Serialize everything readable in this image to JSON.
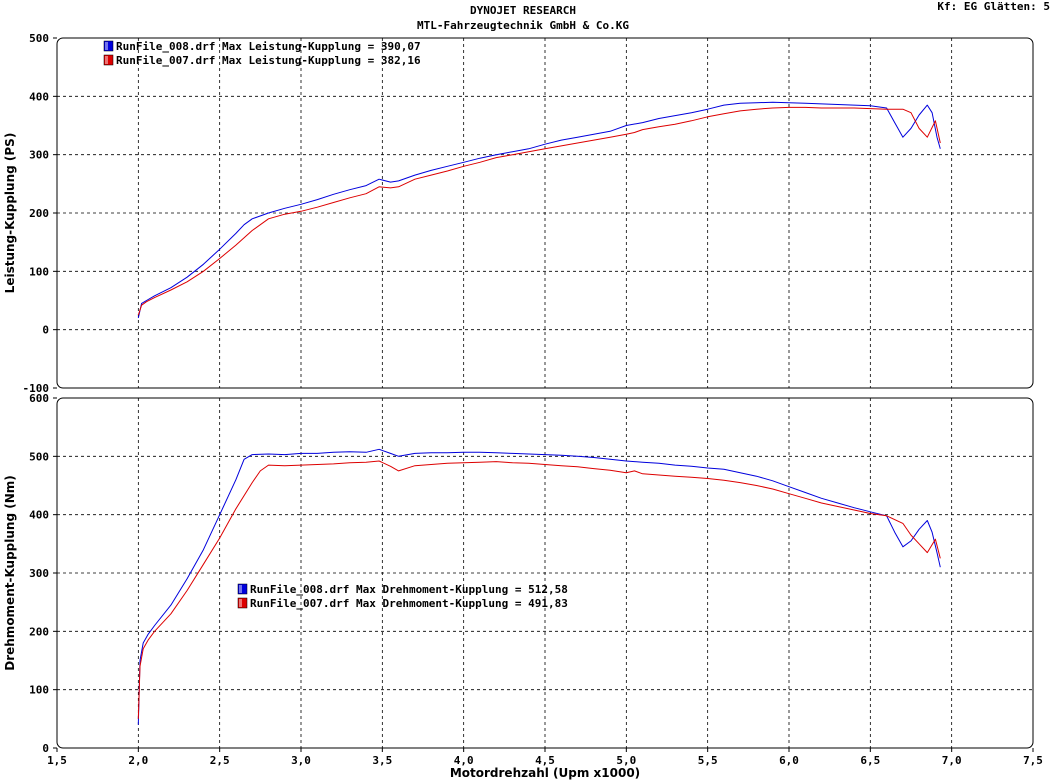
{
  "header": {
    "line1": "DYNOJET RESEARCH",
    "line2": "MTL-Fahrzeugtechnik GmbH & Co.KG",
    "settings": "Kf: EG  Glätten: 5"
  },
  "chart_data": [
    {
      "type": "line",
      "ylabel": "Leistung-Kupplung (PS)",
      "xlim": [
        1.5,
        7.5
      ],
      "ylim": [
        -100,
        500
      ],
      "yticks": [
        "500",
        "400",
        "300",
        "200",
        "100",
        "0",
        "-100"
      ],
      "grid": true,
      "legend_position": "top-left",
      "series": [
        {
          "name": "RunFile_008.drf",
          "legend": "RunFile_008.drf Max Leistung-Kupplung = 390,07",
          "color": "#0000dd",
          "x": [
            2.0,
            2.02,
            2.05,
            2.1,
            2.2,
            2.3,
            2.4,
            2.5,
            2.6,
            2.65,
            2.7,
            2.8,
            2.9,
            3.0,
            3.1,
            3.2,
            3.3,
            3.4,
            3.48,
            3.55,
            3.6,
            3.7,
            3.8,
            3.9,
            4.0,
            4.1,
            4.2,
            4.3,
            4.4,
            4.5,
            4.6,
            4.7,
            4.8,
            4.9,
            5.0,
            5.1,
            5.2,
            5.3,
            5.4,
            5.5,
            5.6,
            5.7,
            5.8,
            5.9,
            6.0,
            6.1,
            6.2,
            6.3,
            6.4,
            6.5,
            6.6,
            6.65,
            6.7,
            6.75,
            6.8,
            6.85,
            6.88,
            6.91,
            6.93
          ],
          "y": [
            20,
            45,
            50,
            58,
            72,
            90,
            112,
            138,
            165,
            180,
            190,
            200,
            208,
            215,
            223,
            232,
            240,
            247,
            258,
            253,
            255,
            265,
            273,
            280,
            287,
            294,
            300,
            305,
            310,
            318,
            325,
            330,
            335,
            340,
            350,
            355,
            362,
            367,
            372,
            378,
            385,
            388,
            389,
            390,
            389,
            388,
            387,
            386,
            385,
            384,
            380,
            355,
            330,
            345,
            368,
            385,
            372,
            330,
            310
          ]
        },
        {
          "name": "RunFile_007.drf",
          "legend": "RunFile_007.drf Max Leistung-Kupplung = 382,16",
          "color": "#dd0000",
          "x": [
            2.0,
            2.02,
            2.05,
            2.1,
            2.2,
            2.3,
            2.4,
            2.5,
            2.6,
            2.7,
            2.8,
            2.9,
            3.0,
            3.1,
            3.2,
            3.3,
            3.4,
            3.48,
            3.55,
            3.6,
            3.7,
            3.8,
            3.9,
            4.0,
            4.1,
            4.2,
            4.3,
            4.4,
            4.5,
            4.6,
            4.7,
            4.8,
            4.9,
            5.0,
            5.05,
            5.1,
            5.2,
            5.3,
            5.4,
            5.5,
            5.6,
            5.7,
            5.8,
            5.9,
            6.0,
            6.1,
            6.2,
            6.3,
            6.4,
            6.5,
            6.6,
            6.7,
            6.75,
            6.8,
            6.85,
            6.9,
            6.93
          ],
          "y": [
            25,
            42,
            48,
            55,
            68,
            82,
            100,
            122,
            145,
            170,
            190,
            198,
            203,
            210,
            218,
            226,
            233,
            245,
            243,
            245,
            258,
            265,
            272,
            280,
            287,
            295,
            300,
            305,
            310,
            315,
            320,
            325,
            330,
            335,
            338,
            343,
            348,
            352,
            358,
            365,
            370,
            375,
            378,
            380,
            381,
            381,
            380,
            380,
            380,
            379,
            378,
            378,
            372,
            345,
            330,
            358,
            320
          ]
        }
      ]
    },
    {
      "type": "line",
      "ylabel": "Drehmoment-Kupplung (Nm)",
      "xlabel": "Motordrehzahl (Upm x1000)",
      "xlim": [
        1.5,
        7.5
      ],
      "ylim": [
        0,
        600
      ],
      "xticks": [
        "1,5",
        "2,0",
        "2,5",
        "3,0",
        "3,5",
        "4,0",
        "4,5",
        "5,0",
        "5,5",
        "6,0",
        "6,5",
        "7,0",
        "7,5"
      ],
      "yticks": [
        "600",
        "500",
        "400",
        "300",
        "200",
        "100",
        "0"
      ],
      "grid": true,
      "legend_position": "center-left",
      "series": [
        {
          "name": "RunFile_008.drf",
          "legend": "RunFile_008.drf Max Drehmoment-Kupplung = 512,58",
          "color": "#0000dd",
          "x": [
            2.0,
            2.01,
            2.03,
            2.06,
            2.1,
            2.2,
            2.3,
            2.4,
            2.5,
            2.6,
            2.65,
            2.7,
            2.8,
            2.9,
            3.0,
            3.1,
            3.2,
            3.3,
            3.4,
            3.48,
            3.55,
            3.6,
            3.7,
            3.8,
            3.9,
            4.0,
            4.1,
            4.2,
            4.3,
            4.4,
            4.5,
            4.6,
            4.7,
            4.8,
            4.9,
            5.0,
            5.1,
            5.2,
            5.3,
            5.4,
            5.5,
            5.6,
            5.7,
            5.8,
            5.9,
            6.0,
            6.1,
            6.2,
            6.3,
            6.4,
            6.5,
            6.6,
            6.65,
            6.7,
            6.75,
            6.8,
            6.85,
            6.88,
            6.91,
            6.93
          ],
          "y": [
            40,
            150,
            180,
            195,
            210,
            245,
            290,
            340,
            400,
            460,
            495,
            503,
            504,
            503,
            505,
            505,
            507,
            508,
            507,
            512,
            505,
            500,
            505,
            506,
            506,
            507,
            507,
            506,
            505,
            504,
            503,
            502,
            500,
            498,
            495,
            492,
            490,
            488,
            485,
            483,
            480,
            478,
            472,
            466,
            458,
            448,
            438,
            428,
            420,
            412,
            405,
            398,
            370,
            345,
            355,
            375,
            390,
            370,
            335,
            310
          ]
        },
        {
          "name": "RunFile_007.drf",
          "legend": "RunFile_007.drf Max Drehmoment-Kupplung = 491,83",
          "color": "#dd0000",
          "x": [
            2.0,
            2.01,
            2.03,
            2.06,
            2.1,
            2.2,
            2.3,
            2.4,
            2.5,
            2.6,
            2.7,
            2.75,
            2.8,
            2.9,
            3.0,
            3.1,
            3.2,
            3.3,
            3.4,
            3.48,
            3.55,
            3.6,
            3.7,
            3.8,
            3.9,
            4.0,
            4.1,
            4.2,
            4.3,
            4.4,
            4.5,
            4.6,
            4.7,
            4.8,
            4.9,
            5.0,
            5.05,
            5.1,
            5.2,
            5.3,
            5.4,
            5.5,
            5.6,
            5.7,
            5.8,
            5.9,
            6.0,
            6.1,
            6.2,
            6.3,
            6.4,
            6.5,
            6.6,
            6.7,
            6.75,
            6.8,
            6.85,
            6.9,
            6.93
          ],
          "y": [
            50,
            140,
            170,
            185,
            200,
            230,
            270,
            315,
            360,
            410,
            455,
            475,
            485,
            484,
            485,
            486,
            487,
            489,
            490,
            492,
            483,
            475,
            484,
            486,
            488,
            489,
            490,
            491,
            489,
            488,
            486,
            484,
            482,
            479,
            476,
            472,
            475,
            470,
            468,
            466,
            464,
            462,
            459,
            455,
            450,
            444,
            436,
            428,
            420,
            414,
            408,
            402,
            398,
            385,
            365,
            350,
            335,
            358,
            325
          ]
        }
      ]
    }
  ]
}
